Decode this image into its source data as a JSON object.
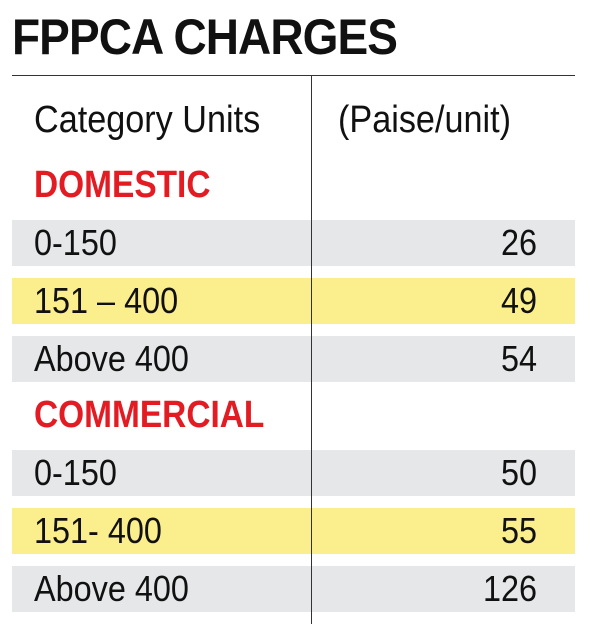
{
  "chart_data": {
    "type": "table",
    "title": "FPPCA CHARGES",
    "columns": [
      "Category Units",
      "(Paise/unit)"
    ],
    "sections": [
      {
        "name": "DOMESTIC",
        "rows": [
          {
            "label": "0-150",
            "value": "26"
          },
          {
            "label": "151 – 400",
            "value": "49"
          },
          {
            "label": "Above 400",
            "value": "54"
          }
        ]
      },
      {
        "name": "COMMERCIAL",
        "rows": [
          {
            "label": "0-150",
            "value": "50"
          },
          {
            "label": "151- 400",
            "value": "55"
          },
          {
            "label": "Above 400",
            "value": "126"
          }
        ]
      }
    ]
  },
  "colors": {
    "section_heading": "#e31b23",
    "row_gray": "#e5e7e8",
    "row_yellow": "#fbee8c"
  }
}
